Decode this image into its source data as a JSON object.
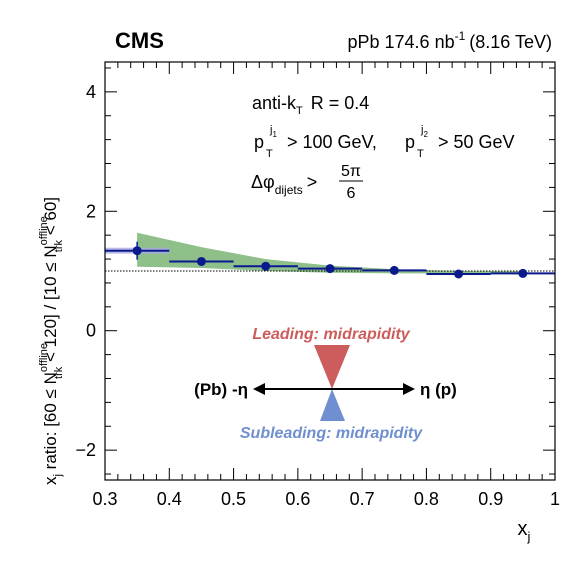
{
  "header": {
    "experiment": "CMS",
    "lumi_prefix": "pPb 174.6 nb",
    "lumi_sup": "-1",
    "lumi_energy": "(8.16 TeV)"
  },
  "annotations": {
    "jet_algo": "anti-k",
    "jet_algo_sub": "T",
    "jet_radius": "R = 0.4",
    "pt_p": "p",
    "pt_T": "T",
    "pt_j1": "j",
    "pt_j1_sub": "1",
    "pt_cut1": "> 100 GeV,",
    "pt_j2": "j",
    "pt_j2_sub": "2",
    "pt_cut2": "> 50 GeV",
    "dphi_delta": "Δφ",
    "dphi_sub": "dijets",
    "dphi_gt": ">",
    "dphi_num": "5π",
    "dphi_den": "6"
  },
  "diagram": {
    "leading_label": "Leading: midrapidity",
    "subleading_label": "Subleading: midrapidity",
    "left_label": "(Pb) -η",
    "right_label": "η (p)",
    "leading_color": "#cd5c5c",
    "subleading_color": "#6f8fd0"
  },
  "axes": {
    "x_label": "x",
    "x_label_sub": "j",
    "y_label": {
      "p1": "x",
      "p1_sub": "j",
      "p2": " ratio: [60 ≤ N",
      "s1_sup": "offline",
      "s1_sub": "trk",
      "p3": " < 120] / [10 ≤ N",
      "s2_sup": "offline",
      "s2_sub": "trk",
      "p4": " < 60]"
    }
  },
  "chart_data": {
    "type": "scatter",
    "x_ticks": [
      "0.3",
      "0.4",
      "0.5",
      "0.6",
      "0.7",
      "0.8",
      "0.9",
      "1"
    ],
    "y_ticks": [
      "−2",
      "0",
      "2",
      "4"
    ],
    "xlim": [
      0.3,
      1.0
    ],
    "ylim": [
      -2.5,
      4.5
    ],
    "reference_line_y": 1.0,
    "series": [
      {
        "x": [
          0.35,
          0.45,
          0.55,
          0.65,
          0.75,
          0.85,
          0.95
        ],
        "y": [
          1.34,
          1.16,
          1.08,
          1.04,
          1.01,
          0.95,
          0.96
        ],
        "y_err": [
          0.15,
          0.04,
          0.03,
          0.03,
          0.03,
          0.03,
          0.03
        ],
        "x_halfwidth": 0.05,
        "marker_color": "#0a1a8c",
        "syst_color": "#a9a9e6",
        "model_band": {
          "x": [
            0.35,
            0.45,
            0.55,
            0.65,
            0.75,
            0.85,
            0.95
          ],
          "low": [
            1.07,
            1.05,
            1.0,
            0.97,
            0.96,
            0.96,
            0.97
          ],
          "high": [
            1.64,
            1.4,
            1.2,
            1.09,
            1.03,
            1.0,
            1.0
          ],
          "color": "#8fc08a"
        }
      }
    ]
  }
}
